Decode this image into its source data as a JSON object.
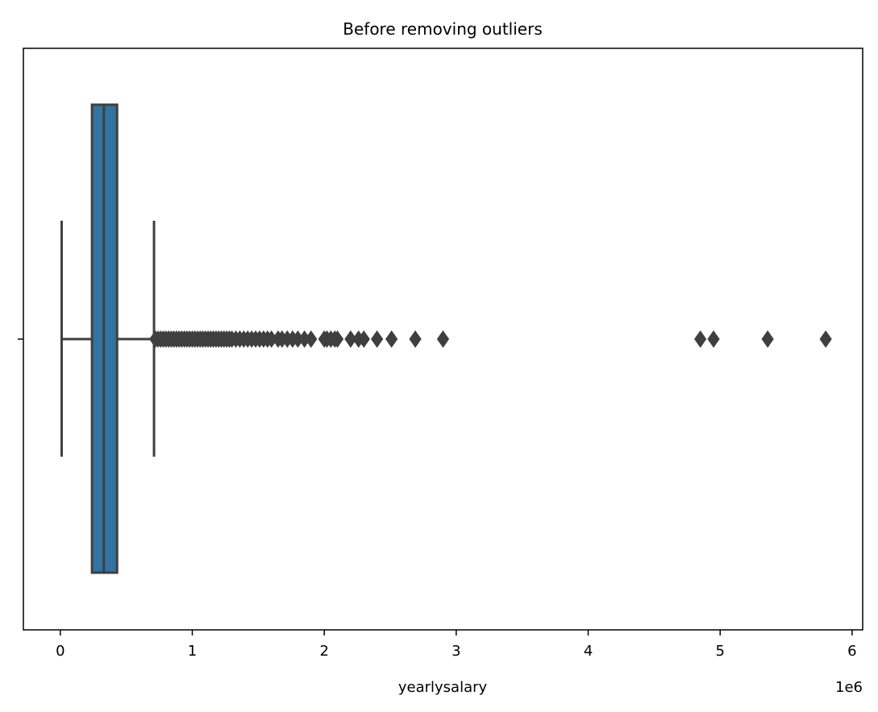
{
  "chart_data": {
    "type": "box",
    "title": "Before removing outliers",
    "xlabel": "yearlysalary",
    "ylabel": "",
    "offset_label": "1e6",
    "xlim": [
      -0.28,
      6.08
    ],
    "xticks": [
      0,
      1,
      2,
      3,
      4,
      5,
      6
    ],
    "xtick_labels": [
      "0",
      "1",
      "2",
      "3",
      "4",
      "5",
      "6"
    ],
    "scale_factor": 1000000,
    "grid": false,
    "box": {
      "whisker_low": 0.01,
      "q1": 0.24,
      "median": 0.33,
      "q3": 0.43,
      "whisker_high": 0.71
    },
    "outliers": [
      0.72,
      0.74,
      0.76,
      0.78,
      0.8,
      0.82,
      0.84,
      0.86,
      0.88,
      0.9,
      0.92,
      0.94,
      0.96,
      0.98,
      1.0,
      1.02,
      1.04,
      1.06,
      1.08,
      1.1,
      1.12,
      1.14,
      1.16,
      1.18,
      1.2,
      1.22,
      1.24,
      1.26,
      1.28,
      1.3,
      1.33,
      1.36,
      1.39,
      1.42,
      1.45,
      1.48,
      1.51,
      1.54,
      1.57,
      1.6,
      1.65,
      1.68,
      1.72,
      1.76,
      1.8,
      1.85,
      1.9,
      2.0,
      2.02,
      2.05,
      2.08,
      2.1,
      2.2,
      2.26,
      2.3,
      2.4,
      2.51,
      2.69,
      2.9,
      4.85,
      4.95,
      5.36,
      5.8
    ],
    "colors": {
      "box_fill": "#3274a1",
      "line": "#3f3f3f"
    }
  }
}
